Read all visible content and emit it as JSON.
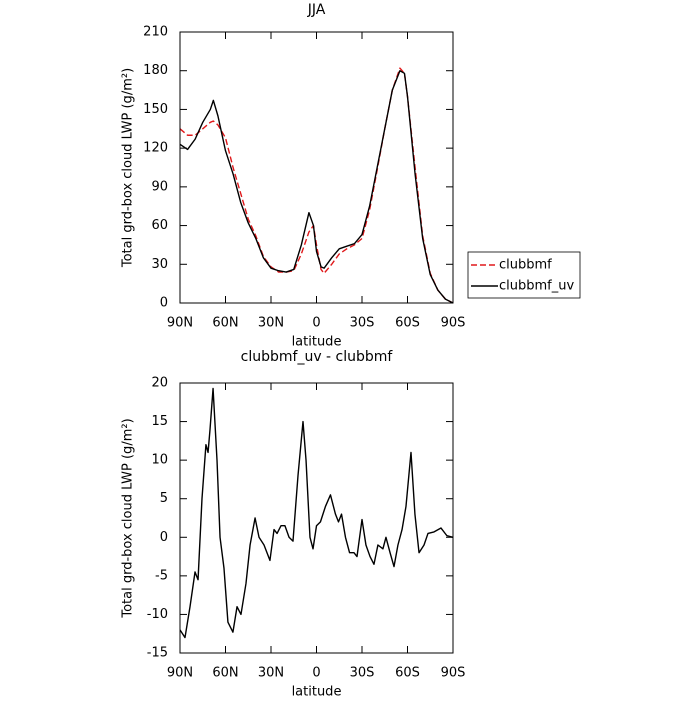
{
  "chart_data": [
    {
      "type": "line",
      "title": "JJA",
      "x_label": "latitude",
      "y_label": "Total grd-box cloud LWP (g/m²)",
      "x": [
        90,
        85,
        80,
        75,
        70,
        68,
        65,
        60,
        55,
        50,
        45,
        40,
        35,
        30,
        25,
        20,
        15,
        10,
        5,
        2,
        0,
        -3,
        -5,
        -10,
        -15,
        -20,
        -25,
        -30,
        -35,
        -40,
        -45,
        -50,
        -55,
        -58,
        -60,
        -65,
        -70,
        -75,
        -80,
        -85,
        -90
      ],
      "series": [
        {
          "name": "clubbmf",
          "color": "#e0191b",
          "dashed": true,
          "values": [
            135,
            130,
            130,
            135,
            140,
            141,
            138,
            128,
            105,
            85,
            65,
            52,
            36,
            28,
            24,
            24,
            25,
            38,
            55,
            60,
            45,
            26,
            23,
            30,
            38,
            42,
            45,
            50,
            72,
            103,
            135,
            165,
            182,
            178,
            160,
            105,
            52,
            23,
            10,
            3,
            0
          ]
        },
        {
          "name": "clubbmf_uv",
          "color": "#000000",
          "dashed": false,
          "values": [
            123,
            119,
            127,
            140,
            150,
            157,
            145,
            118,
            100,
            78,
            62,
            50,
            35,
            27,
            25,
            24,
            26,
            45,
            70,
            60,
            40,
            28,
            27,
            35,
            42,
            44,
            46,
            53,
            75,
            105,
            135,
            165,
            180,
            178,
            160,
            100,
            50,
            22,
            10,
            3,
            0
          ]
        }
      ],
      "xlim": [
        90,
        -90
      ],
      "xticks": [
        {
          "value": 90,
          "label": "90N"
        },
        {
          "value": 60,
          "label": "60N"
        },
        {
          "value": 30,
          "label": "30N"
        },
        0,
        {
          "value": -30,
          "label": "30S"
        },
        {
          "value": -60,
          "label": "60S"
        },
        {
          "value": -90,
          "label": "90S"
        }
      ],
      "ylim": [
        0,
        210
      ],
      "yticks": [
        0,
        30,
        60,
        90,
        120,
        150,
        180,
        210
      ],
      "legend": "right"
    },
    {
      "type": "line",
      "title": "clubbmf_uv - clubbmf",
      "x_label": "latitude",
      "y_label": "Total grd-box cloud LWP (g/m²)",
      "x": [
        90,
        86.7,
        83.4,
        80.1,
        78.1,
        75.5,
        72.9,
        71.5,
        70.2,
        68.2,
        65.6,
        63.6,
        61.0,
        58.4,
        55.1,
        52.4,
        49.8,
        46.5,
        43.8,
        40.5,
        37.9,
        34.6,
        30.7,
        28.0,
        26.0,
        23.4,
        20.8,
        18.1,
        15.5,
        12.2,
        8.9,
        6.9,
        4.3,
        2.3,
        0,
        -2.6,
        -5.9,
        -9.2,
        -12.5,
        -14.5,
        -16.5,
        -19.1,
        -21.8,
        -24.7,
        -26.7,
        -30,
        -32.6,
        -35.3,
        -37.9,
        -40.5,
        -43.8,
        -45.8,
        -48.5,
        -51.1,
        -53.7,
        -56.4,
        -59,
        -62.3,
        -64.9,
        -67.6,
        -70.9,
        -73.5,
        -77.5,
        -82.1,
        -86,
        -90
      ],
      "series": [
        {
          "name": "clubbmf_uv - clubbmf",
          "color": "#000000",
          "dashed": false,
          "values": [
            -12,
            -13,
            -9,
            -4.5,
            -5.5,
            5,
            12,
            11,
            14,
            19.3,
            10,
            0,
            -4,
            -11,
            -12.3,
            -9,
            -10,
            -6,
            -1,
            2.5,
            0,
            -1,
            -3,
            1,
            0.5,
            1.5,
            1.5,
            0,
            -0.5,
            8,
            15,
            10,
            0,
            -1.5,
            1.5,
            2,
            4,
            5.5,
            3,
            2,
            3,
            0,
            -2,
            -2,
            -2.5,
            2.3,
            -1,
            -2.5,
            -3.5,
            -1,
            -1.5,
            0,
            -2,
            -3.8,
            -1,
            1,
            4,
            11,
            3,
            -2,
            -1,
            0.5,
            0.7,
            1.2,
            0.2,
            0
          ]
        }
      ],
      "xlim": [
        90,
        -90
      ],
      "xticks": [
        {
          "value": 90,
          "label": "90N"
        },
        {
          "value": 60,
          "label": "60N"
        },
        {
          "value": 30,
          "label": "30N"
        },
        0,
        {
          "value": -30,
          "label": "30S"
        },
        {
          "value": -60,
          "label": "60S"
        },
        {
          "value": -90,
          "label": "90S"
        }
      ],
      "ylim": [
        -15,
        20
      ],
      "yticks": [
        -15,
        -10,
        -5,
        0,
        5,
        10,
        15,
        20
      ]
    }
  ]
}
